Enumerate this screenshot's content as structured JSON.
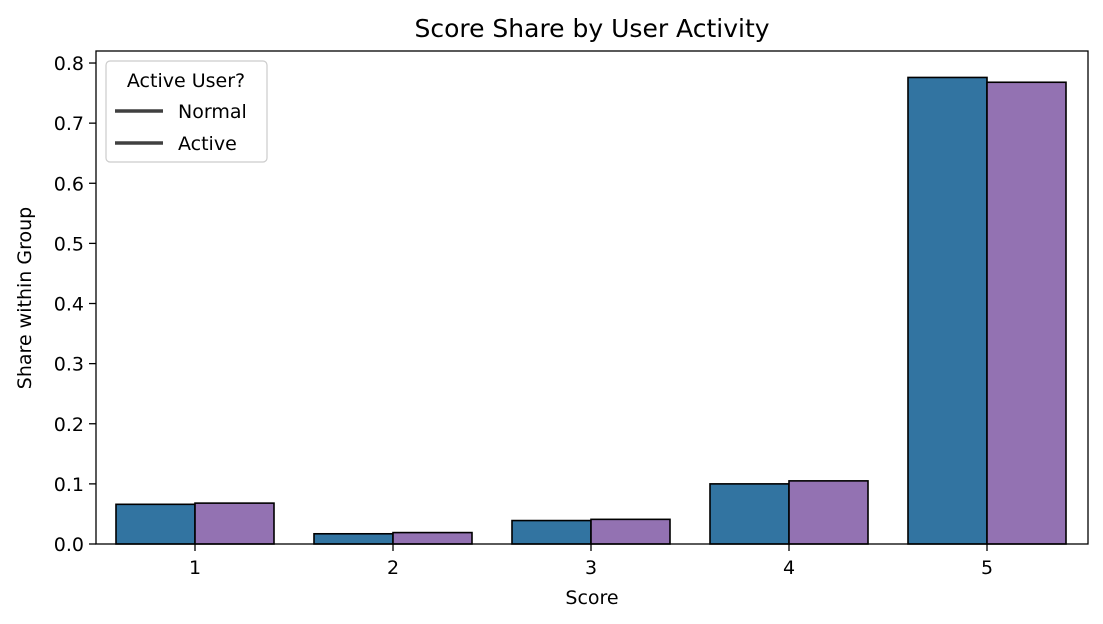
{
  "chart_data": {
    "type": "bar",
    "title": "Score Share by User Activity",
    "xlabel": "Score",
    "ylabel": "Share within Group",
    "categories": [
      "1",
      "2",
      "3",
      "4",
      "5"
    ],
    "series": [
      {
        "name": "Normal",
        "color": "#3274a1",
        "values": [
          0.066,
          0.017,
          0.039,
          0.1,
          0.776
        ]
      },
      {
        "name": "Active",
        "color": "#9372b2",
        "values": [
          0.068,
          0.019,
          0.041,
          0.105,
          0.768
        ]
      }
    ],
    "ylim": [
      0,
      0.82
    ],
    "yticks": [
      "0.0",
      "0.1",
      "0.2",
      "0.3",
      "0.4",
      "0.5",
      "0.6",
      "0.7",
      "0.8"
    ],
    "legend": {
      "title": "Active User?",
      "placement": "top-left",
      "entries": [
        "Normal",
        "Active"
      ]
    },
    "grid": false
  }
}
